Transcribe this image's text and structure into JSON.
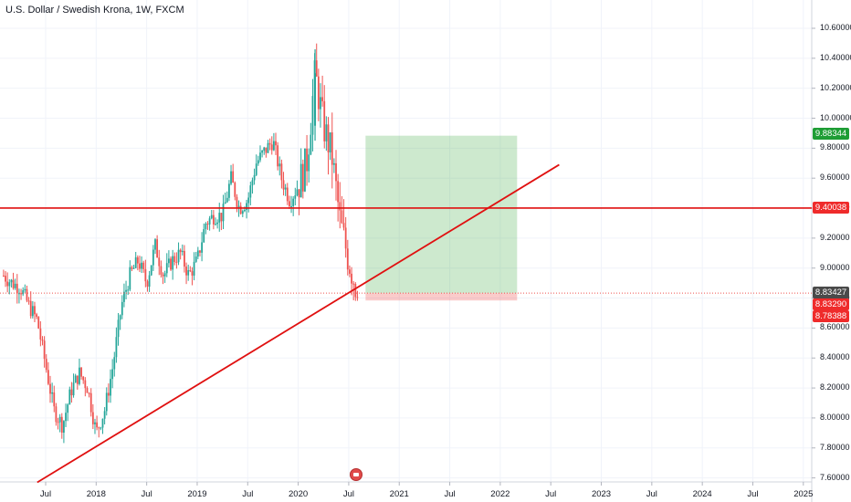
{
  "header": {
    "title": "U.S. Dollar / Swedish Krona, 1W, FXCM"
  },
  "colors": {
    "bull": "#26a69a",
    "bear": "#ef5350",
    "line": "#e01010",
    "target_zone": "rgba(76,175,80,0.28)",
    "stop_zone": "rgba(239,83,80,0.30)",
    "badge_green": "#1e9d35",
    "badge_red": "#ef2b2b",
    "badge_dark": "#4a4a4a"
  },
  "price_axis": {
    "labels": [
      "10.60000",
      "10.40000",
      "10.20000",
      "10.00000",
      "9.80000",
      "9.60000",
      "9.40000",
      "9.20000",
      "9.00000",
      "8.80000",
      "8.60000",
      "8.40000",
      "8.20000",
      "8.00000",
      "7.80000",
      "7.60000"
    ],
    "badges": [
      {
        "text": "9.88344",
        "color": "green"
      },
      {
        "text": "9.40038",
        "color": "red"
      },
      {
        "text": "8.83427",
        "color": "dark"
      },
      {
        "text": "8.83290",
        "color": "red"
      },
      {
        "text": "8.78388",
        "color": "red"
      }
    ]
  },
  "time_axis": {
    "labels": [
      "Jul",
      "2018",
      "Jul",
      "2019",
      "Jul",
      "2020",
      "Jul",
      "2021",
      "Jul",
      "2022",
      "Jul",
      "2023",
      "Jul",
      "2024",
      "Jul",
      "2025"
    ]
  },
  "event_icon": "us-flag-icon",
  "chart_data": {
    "type": "candlestick",
    "title": "U.S. Dollar / Swedish Krona, 1W, FXCM",
    "symbol": "USDSEK",
    "interval": "1W",
    "ylim": [
      7.6,
      10.62
    ],
    "xlim": [
      "2017-02",
      "2025-03"
    ],
    "close_path": [
      [
        "2017-02",
        8.95
      ],
      [
        "2017-03",
        8.9
      ],
      [
        "2017-04",
        8.87
      ],
      [
        "2017-05",
        8.75
      ],
      [
        "2017-06",
        8.65
      ],
      [
        "2017-07",
        8.35
      ],
      [
        "2017-08",
        8.05
      ],
      [
        "2017-09",
        7.95
      ],
      [
        "2017-10",
        8.18
      ],
      [
        "2017-11",
        8.3
      ],
      [
        "2017-12",
        8.2
      ],
      [
        "2018-01",
        7.9
      ],
      [
        "2018-02",
        8.05
      ],
      [
        "2018-03",
        8.35
      ],
      [
        "2018-04",
        8.75
      ],
      [
        "2018-05",
        8.95
      ],
      [
        "2018-06",
        9.05
      ],
      [
        "2018-07",
        8.9
      ],
      [
        "2018-08",
        9.15
      ],
      [
        "2018-09",
        8.95
      ],
      [
        "2018-10",
        9.05
      ],
      [
        "2018-11",
        9.1
      ],
      [
        "2018-12",
        8.95
      ],
      [
        "2019-01",
        9.05
      ],
      [
        "2019-02",
        9.3
      ],
      [
        "2019-03",
        9.35
      ],
      [
        "2019-04",
        9.35
      ],
      [
        "2019-05",
        9.6
      ],
      [
        "2019-06",
        9.4
      ],
      [
        "2019-07",
        9.45
      ],
      [
        "2019-08",
        9.7
      ],
      [
        "2019-09",
        9.78
      ],
      [
        "2019-10",
        9.85
      ],
      [
        "2019-11",
        9.6
      ],
      [
        "2019-12",
        9.45
      ],
      [
        "2020-01",
        9.55
      ],
      [
        "2020-02",
        9.7
      ],
      [
        "2020-03",
        10.3
      ],
      [
        "2020-04",
        9.95
      ],
      [
        "2020-05",
        9.75
      ],
      [
        "2020-06",
        9.3
      ],
      [
        "2020-07",
        9.05
      ],
      [
        "2020-08",
        8.85
      ]
    ],
    "ohlc_sample": [
      {
        "t": "2018-01",
        "o": 7.96,
        "h": 8.0,
        "l": 7.85,
        "c": 7.9
      },
      {
        "t": "2020-03",
        "o": 9.95,
        "h": 10.46,
        "l": 9.85,
        "c": 10.3
      },
      {
        "t": "2020-08",
        "o": 8.98,
        "h": 9.0,
        "l": 8.83,
        "c": 8.85
      }
    ],
    "horizontal_line": {
      "price": 9.40038
    },
    "trendline": {
      "start": [
        "2017-06",
        7.57
      ],
      "end": [
        "2022-08",
        9.69
      ]
    },
    "position": {
      "side": "long",
      "entry": 8.8329,
      "target": 9.88344,
      "stop": 8.78388,
      "start": "2020-09",
      "end": "2022-03"
    },
    "last_price": 8.83427,
    "grid": true
  }
}
